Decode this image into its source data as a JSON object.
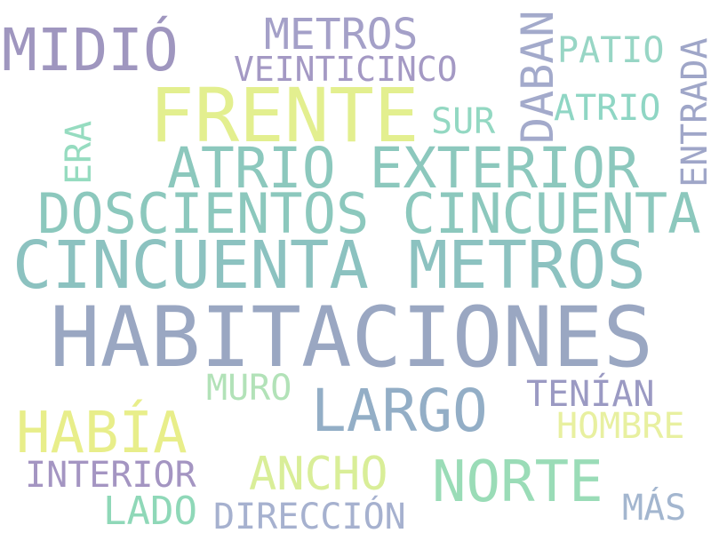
{
  "words": [
    {
      "text": "HABITACIONES",
      "color": "#9aa7c2"
    },
    {
      "text": "CINCUENTA METROS",
      "color": "#8cc2c0"
    },
    {
      "text": "FRENTE",
      "color": "#e3ef8f"
    },
    {
      "text": "DOSCIENTOS CINCUENTA",
      "color": "#8cc8bd"
    },
    {
      "text": "ATRIO EXTERIOR",
      "color": "#8cc8bd"
    },
    {
      "text": "MIDIÓ",
      "color": "#9f96bf"
    },
    {
      "text": "LARGO",
      "color": "#93aec6"
    },
    {
      "text": "HABÍA",
      "color": "#e8ee8a"
    },
    {
      "text": "NORTE",
      "color": "#9adcb7"
    },
    {
      "text": "ANCHO",
      "color": "#d9ee98"
    },
    {
      "text": "METROS",
      "color": "#a4a0c8"
    },
    {
      "text": "VEINTICINCO",
      "color": "#a499c4"
    },
    {
      "text": "INTERIOR",
      "color": "#a495c2"
    },
    {
      "text": "DIRECCIÓN",
      "color": "#a6b1cf"
    },
    {
      "text": "TENÍAN",
      "color": "#9b9ac3"
    },
    {
      "text": "LADO",
      "color": "#8fd8b8"
    },
    {
      "text": "DABAN",
      "color": "#a3aacb"
    },
    {
      "text": "ENTRADA",
      "color": "#9fa6c8"
    },
    {
      "text": "PATIO",
      "color": "#98d6c5"
    },
    {
      "text": "ATRIO",
      "color": "#8fd6c4"
    },
    {
      "text": "SUR",
      "color": "#93d8c2"
    },
    {
      "text": "MURO",
      "color": "#b2e2b8"
    },
    {
      "text": "HOMBRE",
      "color": "#e8f0a0"
    },
    {
      "text": "MÁS",
      "color": "#a3b6cf"
    },
    {
      "text": "ERA",
      "color": "#96dcc0"
    }
  ]
}
